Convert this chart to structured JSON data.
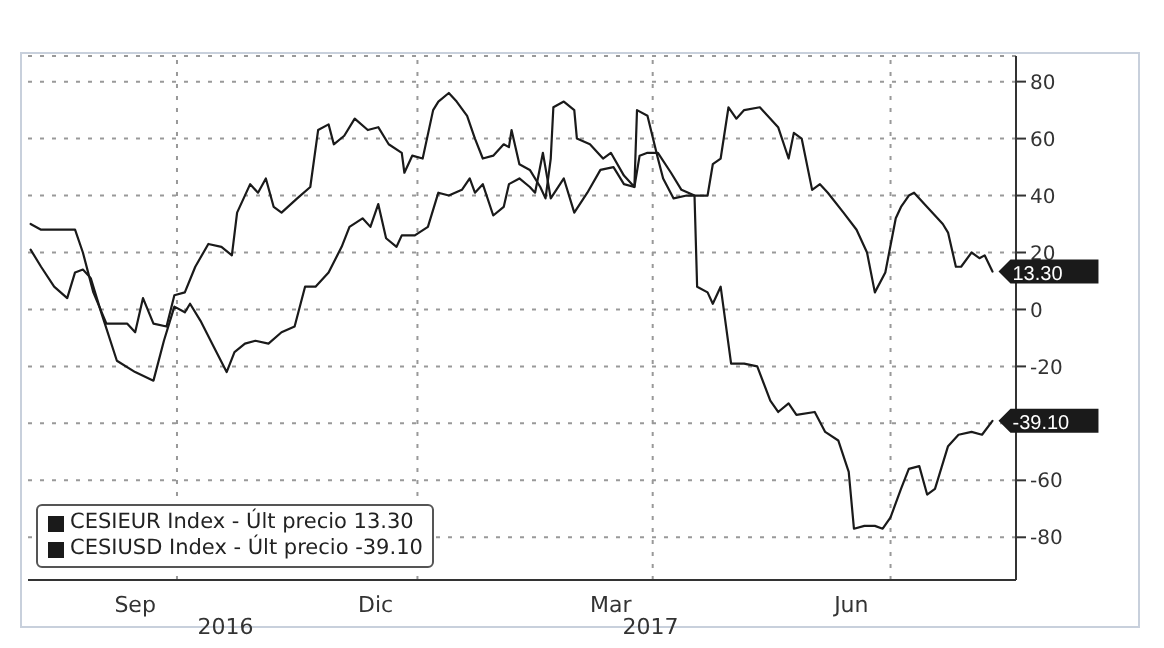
{
  "chart_data": {
    "type": "line",
    "xlim": [
      "2016-08-05",
      "2017-08-18"
    ],
    "ylim": [
      -95,
      89
    ],
    "yticks": [
      -80,
      -60,
      {
        "value": -40,
        "label": null
      },
      -20,
      0,
      20,
      40,
      60,
      80
    ],
    "xticks": [
      {
        "value": "2016-09-15",
        "label": "Sep"
      },
      {
        "value": "2016-10-01",
        "label": null
      },
      {
        "value": "2016-12-16",
        "label": "Dic"
      },
      {
        "value": "2017-01-01",
        "label": null
      },
      {
        "value": "2017-03-16",
        "label": "Mar"
      },
      {
        "value": "2017-04-01",
        "label": null
      },
      {
        "value": "2017-06-16",
        "label": "Jun"
      },
      {
        "value": "2017-07-01",
        "label": null
      }
    ],
    "grid": true,
    "legend": "bottom left",
    "line_style": "solid",
    "marker": "none",
    "annotations": [
      "2016",
      "2017"
    ],
    "series": [
      {
        "name": "CESIEUR Index - Últ precio 13.30",
        "color": "#1a1a1a",
        "x": [
          "2016-08-06",
          "2016-08-10",
          "2016-08-15",
          "2016-08-20",
          "2016-08-23",
          "2016-08-26",
          "2016-08-29",
          "2016-09-02",
          "2016-09-08",
          "2016-09-15",
          "2016-09-22",
          "2016-09-26",
          "2016-09-30",
          "2016-10-04",
          "2016-10-06",
          "2016-10-10",
          "2016-10-15",
          "2016-10-20",
          "2016-10-23",
          "2016-10-27",
          "2016-10-31",
          "2016-11-05",
          "2016-11-10",
          "2016-11-15",
          "2016-11-19",
          "2016-11-23",
          "2016-11-28",
          "2016-12-03",
          "2016-12-06",
          "2016-12-11",
          "2016-12-14",
          "2016-12-17",
          "2016-12-20",
          "2016-12-24",
          "2016-12-26",
          "2016-12-31",
          "2017-01-05",
          "2017-01-09",
          "2017-01-13",
          "2017-01-18",
          "2017-01-21",
          "2017-01-23",
          "2017-01-26",
          "2017-01-30",
          "2017-02-03",
          "2017-02-05",
          "2017-02-09",
          "2017-02-13",
          "2017-02-15",
          "2017-02-18",
          "2017-02-21",
          "2017-02-26",
          "2017-03-02",
          "2017-03-07",
          "2017-03-12",
          "2017-03-17",
          "2017-03-21",
          "2017-03-25",
          "2017-03-27",
          "2017-03-30",
          "2017-04-03",
          "2017-04-08",
          "2017-04-12",
          "2017-04-17",
          "2017-04-22",
          "2017-04-24",
          "2017-04-27",
          "2017-04-30",
          "2017-05-03",
          "2017-05-06",
          "2017-05-12",
          "2017-05-19",
          "2017-05-23",
          "2017-05-25",
          "2017-05-28",
          "2017-06-01",
          "2017-06-04",
          "2017-06-07",
          "2017-06-13",
          "2017-06-18",
          "2017-06-22",
          "2017-06-25",
          "2017-06-29",
          "2017-07-03",
          "2017-07-05",
          "2017-07-08",
          "2017-07-10",
          "2017-07-15",
          "2017-07-21",
          "2017-07-23",
          "2017-07-26",
          "2017-07-28",
          "2017-08-01",
          "2017-08-04",
          "2017-08-06",
          "2017-08-09"
        ],
        "values": [
          21,
          15,
          8,
          4,
          13,
          14,
          11,
          -1,
          -18,
          -22,
          -25,
          -11,
          1,
          -1,
          2,
          -4,
          -13,
          -22,
          -15,
          -12,
          -11,
          -12,
          -8,
          -6,
          8,
          8,
          13,
          22,
          29,
          32,
          29,
          37,
          25,
          22,
          26,
          26,
          29,
          41,
          40,
          42,
          46,
          41,
          44,
          33,
          36,
          44,
          46,
          43,
          41,
          55,
          39,
          46,
          34,
          41,
          49,
          50,
          44,
          43,
          54,
          55,
          55,
          48,
          42,
          40,
          40,
          51,
          53,
          71,
          67,
          70,
          71,
          64,
          53,
          62,
          60,
          42,
          44,
          41,
          34,
          28,
          20,
          6,
          13,
          32,
          36,
          40,
          41,
          36,
          30,
          27,
          15,
          15,
          20,
          18,
          19,
          13.3
        ],
        "value_labels": [
          null,
          null,
          null,
          null,
          null,
          null,
          null,
          null,
          null,
          null,
          null,
          null,
          null,
          null,
          null,
          null,
          null,
          null,
          null,
          null,
          null,
          null,
          null,
          null,
          null,
          null,
          null,
          null,
          null,
          null,
          null,
          null,
          null,
          null,
          null,
          null,
          null,
          null,
          null,
          null,
          null,
          null,
          null,
          null,
          null,
          null,
          null,
          null,
          null,
          null,
          null,
          null,
          null,
          null,
          null,
          null,
          null,
          null,
          null,
          null,
          null,
          null,
          null,
          null,
          null,
          null,
          null,
          null,
          null,
          null,
          null,
          null,
          null,
          null,
          null,
          null,
          null,
          null,
          null,
          null,
          null,
          null,
          null,
          null,
          null,
          null,
          null,
          null,
          null,
          null,
          null,
          null,
          null,
          null,
          null,
          "13.30"
        ]
      },
      {
        "name": "CESIUSD Index - Últ precio -39.10",
        "color": "#1a1a1a",
        "x": [
          "2016-08-06",
          "2016-08-10",
          "2016-08-23",
          "2016-08-26",
          "2016-08-30",
          "2016-09-04",
          "2016-09-12",
          "2016-09-15",
          "2016-09-18",
          "2016-09-22",
          "2016-09-27",
          "2016-09-30",
          "2016-10-04",
          "2016-10-08",
          "2016-10-13",
          "2016-10-18",
          "2016-10-22",
          "2016-10-24",
          "2016-10-29",
          "2016-11-01",
          "2016-11-04",
          "2016-11-07",
          "2016-11-10",
          "2016-11-16",
          "2016-11-21",
          "2016-11-24",
          "2016-11-28",
          "2016-11-30",
          "2016-12-04",
          "2016-12-08",
          "2016-12-13",
          "2016-12-17",
          "2016-12-21",
          "2016-12-26",
          "2016-12-27",
          "2016-12-30",
          "2017-01-03",
          "2017-01-07",
          "2017-01-09",
          "2017-01-13",
          "2017-01-16",
          "2017-01-20",
          "2017-01-23",
          "2017-01-26",
          "2017-01-30",
          "2017-02-03",
          "2017-02-05",
          "2017-02-06",
          "2017-02-09",
          "2017-02-13",
          "2017-02-17",
          "2017-02-19",
          "2017-02-21",
          "2017-02-22",
          "2017-02-26",
          "2017-03-02",
          "2017-03-03",
          "2017-03-08",
          "2017-03-13",
          "2017-03-16",
          "2017-03-21",
          "2017-03-25",
          "2017-03-26",
          "2017-03-30",
          "2017-04-03",
          "2017-04-05",
          "2017-04-09",
          "2017-04-14",
          "2017-04-17",
          "2017-04-18",
          "2017-04-22",
          "2017-04-24",
          "2017-04-27",
          "2017-05-01",
          "2017-05-06",
          "2017-05-11",
          "2017-05-16",
          "2017-05-19",
          "2017-05-23",
          "2017-05-26",
          "2017-06-02",
          "2017-06-06",
          "2017-06-11",
          "2017-06-15",
          "2017-06-17",
          "2017-06-21",
          "2017-06-25",
          "2017-06-28",
          "2017-07-01",
          "2017-07-05",
          "2017-07-08",
          "2017-07-12",
          "2017-07-15",
          "2017-07-18",
          "2017-07-19",
          "2017-07-23",
          "2017-07-27",
          "2017-08-01",
          "2017-08-05",
          "2017-08-09"
        ],
        "values": [
          30,
          28,
          28,
          20,
          6,
          -5,
          -5,
          -8,
          4,
          -5,
          -6,
          5,
          6,
          15,
          23,
          22,
          19,
          34,
          44,
          41,
          46,
          36,
          34,
          39,
          43,
          63,
          65,
          58,
          61,
          67,
          63,
          64,
          58,
          55,
          48,
          54,
          53,
          70,
          73,
          76,
          73,
          68,
          60,
          53,
          54,
          58,
          57,
          63,
          51,
          49,
          43,
          39,
          53,
          71,
          73,
          70,
          60,
          58,
          53,
          55,
          47,
          43,
          70,
          68,
          53,
          46,
          39,
          40,
          40,
          8,
          6,
          2,
          8,
          -19,
          -19,
          -20,
          -32,
          -36,
          -33,
          -37,
          -36,
          -43,
          -46,
          -57,
          -77,
          -76,
          -76,
          -77,
          -73,
          -63,
          -56,
          -55,
          -65,
          -63,
          -60,
          -48,
          -44,
          -43,
          -44,
          -39.1
        ],
        "value_labels": [
          null,
          null,
          null,
          null,
          null,
          null,
          null,
          null,
          null,
          null,
          null,
          null,
          null,
          null,
          null,
          null,
          null,
          null,
          null,
          null,
          null,
          null,
          null,
          null,
          null,
          null,
          null,
          null,
          null,
          null,
          null,
          null,
          null,
          null,
          null,
          null,
          null,
          null,
          null,
          null,
          null,
          null,
          null,
          null,
          null,
          null,
          null,
          null,
          null,
          null,
          null,
          null,
          null,
          null,
          null,
          null,
          null,
          null,
          null,
          null,
          null,
          null,
          null,
          null,
          null,
          null,
          null,
          null,
          null,
          null,
          null,
          null,
          null,
          null,
          null,
          null,
          null,
          null,
          null,
          null,
          null,
          null,
          null,
          null,
          null,
          null,
          null,
          null,
          null,
          null,
          null,
          null,
          null,
          null,
          null,
          null,
          null,
          null,
          null,
          "-39.10"
        ]
      }
    ]
  }
}
